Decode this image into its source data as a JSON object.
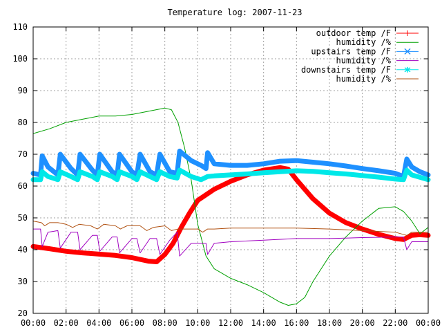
{
  "chart_data": {
    "type": "line",
    "title": "Temperature log: 2007-11-23",
    "xlabel": "",
    "ylabel": "",
    "xlim": [
      0,
      24
    ],
    "ylim": [
      20,
      110
    ],
    "x_tick_labels": [
      "00:00",
      "02:00",
      "04:00",
      "06:00",
      "08:00",
      "10:00",
      "12:00",
      "14:00",
      "16:00",
      "18:00",
      "20:00",
      "22:00",
      "00:00"
    ],
    "y_ticks": [
      20,
      30,
      40,
      50,
      60,
      70,
      80,
      90,
      100,
      110
    ],
    "grid": true,
    "legend_position": "top-right",
    "series": [
      {
        "name": "outdoor temp /F",
        "color": "#ff0000",
        "marker": "plus",
        "x": [
          0,
          1,
          2,
          3,
          4,
          5,
          6,
          7,
          7.5,
          8,
          8.5,
          9,
          9.5,
          10,
          11,
          12,
          13,
          14,
          15,
          15.5,
          16,
          17,
          18,
          19,
          20,
          21,
          22,
          22.5,
          23,
          23.5,
          24
        ],
        "y": [
          41,
          40.3,
          39.5,
          39,
          38.6,
          38.2,
          37.5,
          36.4,
          36.2,
          38.5,
          42,
          47,
          51.5,
          55.5,
          59,
          61.5,
          63.5,
          65,
          65.8,
          65.3,
          62,
          56,
          51.5,
          48.5,
          46.5,
          44.8,
          43.5,
          43.2,
          44.5,
          44.7,
          44.5
        ]
      },
      {
        "name": "humidity /%",
        "color": "#00a000",
        "marker": "line",
        "x": [
          0,
          1,
          2,
          3,
          4,
          5,
          6,
          7,
          8,
          8.4,
          8.8,
          9.2,
          9.6,
          10,
          10.5,
          11,
          12,
          13,
          14,
          15,
          15.5,
          16,
          16.5,
          17,
          18,
          19,
          20,
          21,
          22,
          22.5,
          23,
          23.5,
          24
        ],
        "y": [
          76.5,
          78,
          80,
          81,
          82,
          82,
          82.5,
          83.5,
          84.5,
          84,
          80,
          72,
          62,
          48,
          38,
          34,
          31,
          29,
          26.5,
          23.5,
          22.5,
          23,
          25,
          30,
          38,
          44,
          49,
          53,
          53.5,
          52,
          49,
          45,
          47
        ]
      },
      {
        "name": "upstairs temp /F",
        "color": "#1e90ff",
        "marker": "cross",
        "x": [
          0,
          0.45,
          0.55,
          0.9,
          1.5,
          1.65,
          2.3,
          2.7,
          2.85,
          3.6,
          3.9,
          4.05,
          4.8,
          5.1,
          5.25,
          6,
          6.3,
          6.5,
          7.1,
          7.5,
          7.7,
          8.3,
          8.75,
          8.9,
          9.6,
          10.2,
          10.5,
          10.6,
          11,
          12,
          13,
          14,
          15,
          16,
          17,
          18,
          19,
          20,
          21,
          22,
          22.5,
          22.7,
          23,
          23.5,
          24
        ],
        "y": [
          64,
          63.5,
          69.5,
          66,
          63.5,
          70,
          65.5,
          63.5,
          70,
          65,
          63.5,
          70,
          64.5,
          63.5,
          70,
          64.5,
          63.5,
          70,
          64.5,
          63.5,
          70,
          64.5,
          64,
          71,
          68,
          66.5,
          65.5,
          70.5,
          67,
          66.5,
          66.5,
          67,
          67.8,
          68,
          67.5,
          67,
          66.3,
          65.5,
          64.8,
          64,
          63,
          68.5,
          66,
          64.5,
          63.5
        ]
      },
      {
        "name": "humidity /%",
        "color": "#a000c0",
        "marker": "line",
        "x": [
          0,
          0.45,
          0.55,
          0.9,
          1.5,
          1.65,
          2.3,
          2.7,
          2.85,
          3.6,
          3.9,
          4.05,
          4.8,
          5.1,
          5.25,
          6,
          6.3,
          6.5,
          7.1,
          7.5,
          7.7,
          8.3,
          8.75,
          8.9,
          9.6,
          10.2,
          10.5,
          10.6,
          11,
          12,
          14,
          16,
          18,
          20,
          22,
          22.5,
          22.7,
          23,
          24
        ],
        "y": [
          46.5,
          46.5,
          41,
          45.5,
          46,
          40.5,
          45.5,
          45.5,
          40,
          44.5,
          44.5,
          39.5,
          44,
          44,
          39,
          43.5,
          43.5,
          39,
          43.5,
          43.5,
          38.5,
          43,
          45.5,
          38,
          42,
          42,
          42,
          38.5,
          42,
          42.5,
          43,
          43.5,
          43.5,
          43.8,
          44,
          44,
          40,
          42.5,
          42.5
        ]
      },
      {
        "name": "downstairs temp /F",
        "color": "#00e8e8",
        "marker": "star",
        "x": [
          0,
          0.45,
          0.55,
          0.9,
          1.5,
          1.65,
          2.3,
          2.7,
          2.85,
          3.6,
          3.9,
          4.05,
          4.8,
          5.1,
          5.25,
          6,
          6.3,
          6.5,
          7.1,
          7.5,
          7.7,
          8.3,
          8.75,
          8.9,
          9.6,
          10.2,
          10.6,
          11,
          12,
          13,
          14,
          15,
          16,
          17,
          18,
          19,
          20,
          21,
          22,
          22.5,
          22.7,
          23,
          24
        ],
        "y": [
          62,
          62,
          64.5,
          63,
          62,
          64.5,
          63,
          62,
          64.5,
          63,
          62,
          64.5,
          63,
          62,
          64.5,
          63,
          62,
          64.5,
          63,
          62,
          64.5,
          63,
          62.5,
          65,
          63,
          62,
          63,
          63.2,
          63.5,
          63.8,
          64.2,
          64.5,
          64.8,
          64.6,
          64.2,
          63.8,
          63.3,
          62.8,
          62.2,
          62,
          65,
          63.5,
          62
        ]
      },
      {
        "name": "humidity /%",
        "color": "#b05010",
        "marker": "line",
        "x": [
          0,
          0.5,
          0.7,
          1,
          1.5,
          2,
          2.4,
          2.8,
          3.5,
          3.9,
          4.3,
          5,
          5.3,
          5.7,
          6.5,
          6.9,
          7.3,
          8,
          8.4,
          8.8,
          9.5,
          10,
          10.3,
          10.6,
          11,
          12,
          14,
          16,
          18,
          20,
          22,
          22.7,
          23,
          24
        ],
        "y": [
          49,
          48.5,
          47.5,
          48.5,
          48.5,
          48,
          47,
          48,
          47.5,
          46.5,
          48,
          47.5,
          46.5,
          47.5,
          47.5,
          46,
          47,
          47.5,
          46,
          46.5,
          46.5,
          46.5,
          45.5,
          46.5,
          46.5,
          46.8,
          46.8,
          46.8,
          46.5,
          46,
          45.5,
          44.5,
          45.5,
          45.5
        ]
      }
    ]
  }
}
